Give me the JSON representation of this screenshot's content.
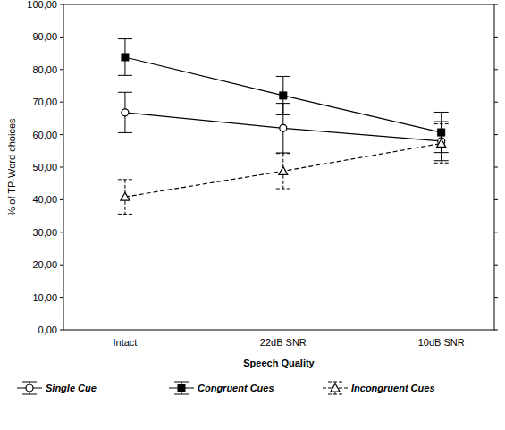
{
  "chart_data": {
    "type": "line",
    "x_label": "Speech Quality",
    "y_label": "% of TP-Word choices",
    "categories": [
      "Intact",
      "22dB SNR",
      "10dB SNR"
    ],
    "ylim": [
      0,
      100
    ],
    "yticks": [
      {
        "value": 0,
        "label": "0,00"
      },
      {
        "value": 10,
        "label": "10,00"
      },
      {
        "value": 20,
        "label": "20,00"
      },
      {
        "value": 30,
        "label": "30,00"
      },
      {
        "value": 40,
        "label": "40,00"
      },
      {
        "value": 50,
        "label": "50,00"
      },
      {
        "value": 60,
        "label": "60,00"
      },
      {
        "value": 70,
        "label": "70,00"
      },
      {
        "value": 80,
        "label": "80,00"
      },
      {
        "value": 90,
        "label": "90,00"
      },
      {
        "value": 100,
        "label": "100,00"
      }
    ],
    "grid": false,
    "legend": "bottom",
    "series": [
      {
        "name": "Single Cue",
        "color": "#000000",
        "marker": "circle",
        "line_style": "solid",
        "values": [
          66.8,
          62.0,
          58.0
        ],
        "errors": [
          6.2,
          7.6,
          6.0
        ]
      },
      {
        "name": "Congruent Cues",
        "color": "#000000",
        "marker": "square",
        "line_style": "solid",
        "values": [
          83.8,
          72.0,
          60.7
        ],
        "errors": [
          5.6,
          5.9,
          6.2
        ]
      },
      {
        "name": "Incongruent Cues",
        "color": "#000000",
        "marker": "triangle",
        "line_style": "dashed",
        "values": [
          40.9,
          48.8,
          57.3
        ],
        "errors": [
          5.3,
          5.4,
          6.0
        ]
      }
    ]
  }
}
